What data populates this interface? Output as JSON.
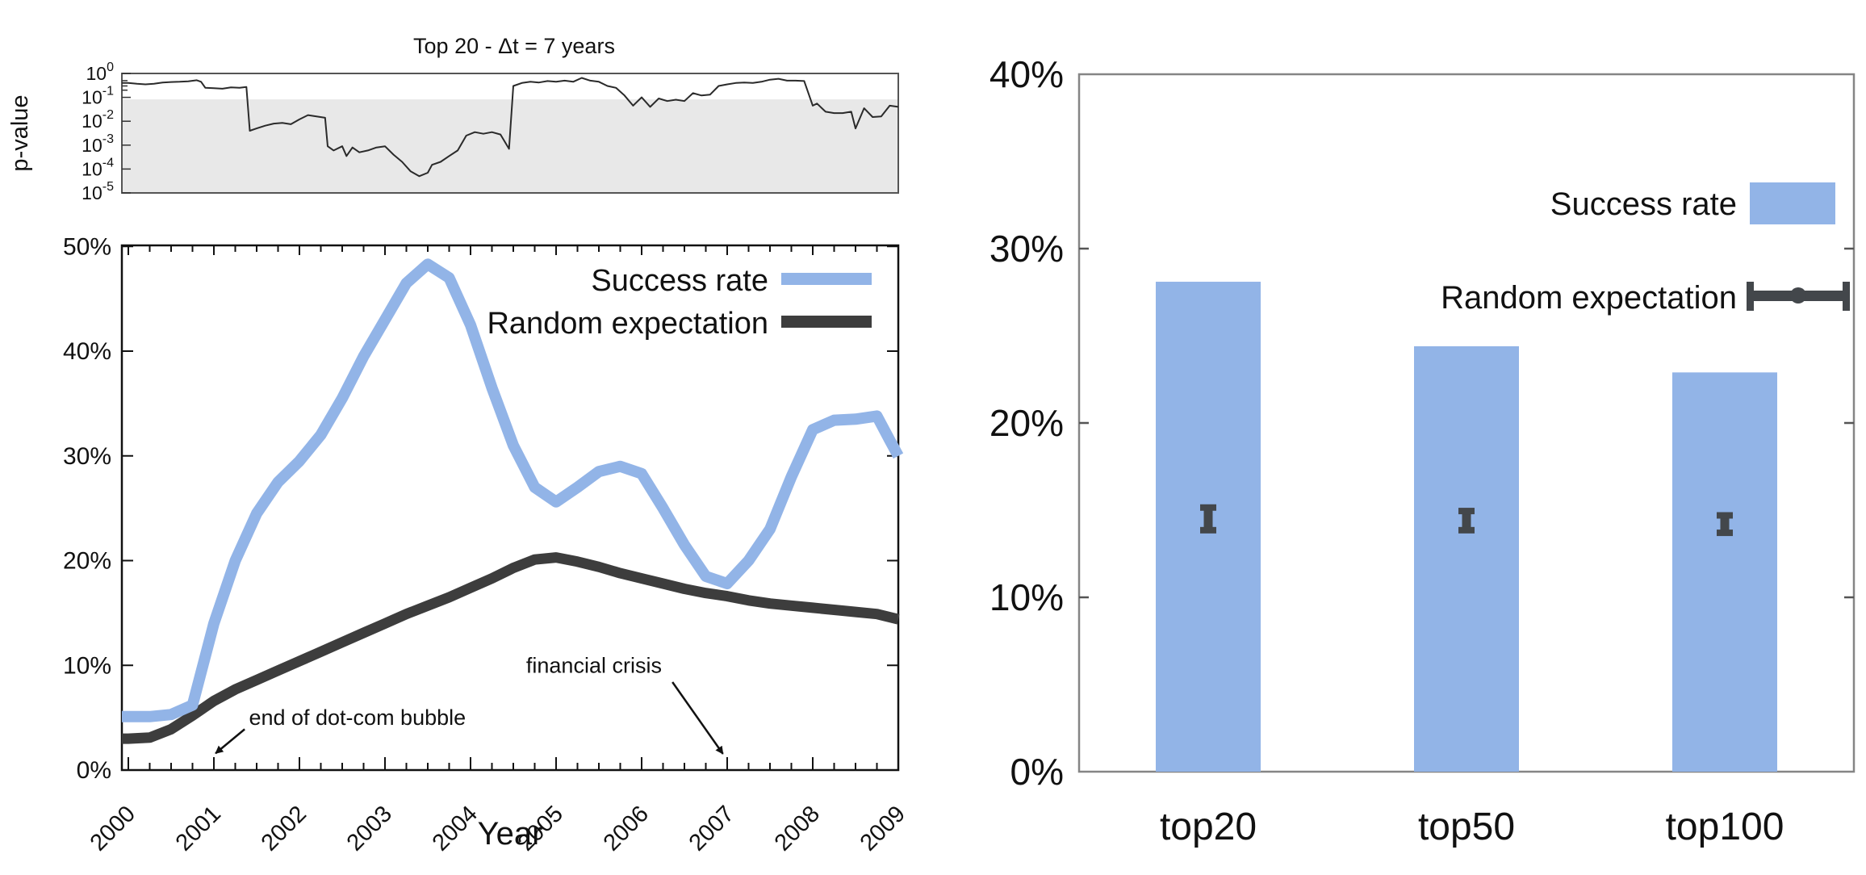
{
  "figure_title": "Top 20 - Δt = 7 years",
  "colors": {
    "success_blue": "#92b4e7",
    "random_dark": "#3d3d3d",
    "pvalue_line": "#2a2a2a",
    "shade_gray": "#e8e8e8",
    "error_bar": "#43474b",
    "bar_frame": "#858585",
    "main_frame": "#111111",
    "pv_frame": "#555555"
  },
  "chart_data": [
    {
      "id": "pvalue_panel",
      "type": "line",
      "title": "Top 20 - Δt = 7 years",
      "ylabel": "p-value",
      "yscale": "log",
      "ylim": [
        1e-05,
        1
      ],
      "ytick_exponents": [
        0,
        -1,
        -2,
        -3,
        -4,
        -5
      ],
      "xlim": [
        2000,
        2009
      ],
      "shaded_below": 0.1,
      "grid": false,
      "series": [
        {
          "name": "p-value",
          "points": [
            [
              2000.0,
              0.4
            ],
            [
              2000.1,
              0.37
            ],
            [
              2000.2,
              0.35
            ],
            [
              2000.3,
              0.37
            ],
            [
              2000.4,
              0.42
            ],
            [
              2000.5,
              0.44
            ],
            [
              2000.6,
              0.45
            ],
            [
              2000.7,
              0.47
            ],
            [
              2000.8,
              0.52
            ],
            [
              2000.85,
              0.45
            ],
            [
              2000.9,
              0.25
            ],
            [
              2001.0,
              0.24
            ],
            [
              2001.1,
              0.23
            ],
            [
              2001.2,
              0.26
            ],
            [
              2001.3,
              0.25
            ],
            [
              2001.38,
              0.27
            ],
            [
              2001.42,
              0.004
            ],
            [
              2001.5,
              0.005
            ],
            [
              2001.6,
              0.0065
            ],
            [
              2001.7,
              0.008
            ],
            [
              2001.8,
              0.0085
            ],
            [
              2001.9,
              0.0075
            ],
            [
              2002.0,
              0.012
            ],
            [
              2002.1,
              0.018
            ],
            [
              2002.2,
              0.016
            ],
            [
              2002.3,
              0.014
            ],
            [
              2002.33,
              0.0009
            ],
            [
              2002.4,
              0.0006
            ],
            [
              2002.5,
              0.0009
            ],
            [
              2002.55,
              0.00035
            ],
            [
              2002.62,
              0.0008
            ],
            [
              2002.7,
              0.0005
            ],
            [
              2002.8,
              0.0006
            ],
            [
              2002.9,
              0.0008
            ],
            [
              2003.0,
              0.0009
            ],
            [
              2003.1,
              0.0004
            ],
            [
              2003.2,
              0.0002
            ],
            [
              2003.3,
              8e-05
            ],
            [
              2003.4,
              5e-05
            ],
            [
              2003.5,
              7e-05
            ],
            [
              2003.55,
              0.00015
            ],
            [
              2003.65,
              0.0002
            ],
            [
              2003.75,
              0.00035
            ],
            [
              2003.85,
              0.0006
            ],
            [
              2003.95,
              0.0025
            ],
            [
              2004.05,
              0.0035
            ],
            [
              2004.15,
              0.003
            ],
            [
              2004.25,
              0.0035
            ],
            [
              2004.35,
              0.0028
            ],
            [
              2004.45,
              0.0007
            ],
            [
              2004.5,
              0.3
            ],
            [
              2004.6,
              0.4
            ],
            [
              2004.7,
              0.45
            ],
            [
              2004.8,
              0.42
            ],
            [
              2004.9,
              0.48
            ],
            [
              2005.0,
              0.45
            ],
            [
              2005.1,
              0.5
            ],
            [
              2005.2,
              0.45
            ],
            [
              2005.3,
              0.65
            ],
            [
              2005.4,
              0.5
            ],
            [
              2005.5,
              0.45
            ],
            [
              2005.6,
              0.3
            ],
            [
              2005.7,
              0.25
            ],
            [
              2005.8,
              0.12
            ],
            [
              2005.9,
              0.045
            ],
            [
              2006.0,
              0.1
            ],
            [
              2006.1,
              0.04
            ],
            [
              2006.2,
              0.09
            ],
            [
              2006.3,
              0.07
            ],
            [
              2006.4,
              0.08
            ],
            [
              2006.5,
              0.07
            ],
            [
              2006.6,
              0.15
            ],
            [
              2006.7,
              0.12
            ],
            [
              2006.8,
              0.13
            ],
            [
              2006.9,
              0.3
            ],
            [
              2007.0,
              0.35
            ],
            [
              2007.1,
              0.4
            ],
            [
              2007.2,
              0.42
            ],
            [
              2007.3,
              0.4
            ],
            [
              2007.4,
              0.45
            ],
            [
              2007.5,
              0.55
            ],
            [
              2007.6,
              0.6
            ],
            [
              2007.7,
              0.5
            ],
            [
              2007.8,
              0.5
            ],
            [
              2007.9,
              0.48
            ],
            [
              2008.0,
              0.045
            ],
            [
              2008.05,
              0.055
            ],
            [
              2008.15,
              0.025
            ],
            [
              2008.25,
              0.022
            ],
            [
              2008.35,
              0.022
            ],
            [
              2008.45,
              0.025
            ],
            [
              2008.5,
              0.005
            ],
            [
              2008.6,
              0.035
            ],
            [
              2008.7,
              0.015
            ],
            [
              2008.8,
              0.016
            ],
            [
              2008.9,
              0.045
            ],
            [
              2009.0,
              0.04
            ]
          ]
        }
      ]
    },
    {
      "id": "success_rate_panel",
      "type": "line",
      "xlabel": "Year",
      "ylim": [
        0,
        50
      ],
      "ytick_labels": [
        "0%",
        "10%",
        "20%",
        "30%",
        "40%",
        "50%"
      ],
      "ytick_values": [
        0,
        10,
        20,
        30,
        40,
        50
      ],
      "xtick_labels": [
        "2000",
        "2001",
        "2002",
        "2003",
        "2004",
        "2005",
        "2006",
        "2007",
        "2008",
        "2009"
      ],
      "xtick_values": [
        2000,
        2001,
        2002,
        2003,
        2004,
        2005,
        2006,
        2007,
        2008,
        2009
      ],
      "legend_position": "top right",
      "grid": false,
      "series": [
        {
          "name": "Success rate",
          "color": "#92b4e7",
          "points": [
            [
              2000,
              5.1
            ],
            [
              2000.25,
              5.1
            ],
            [
              2000.5,
              5.3
            ],
            [
              2000.75,
              6.2
            ],
            [
              2001,
              14
            ],
            [
              2001.25,
              20
            ],
            [
              2001.5,
              24.5
            ],
            [
              2001.75,
              27.5
            ],
            [
              2002,
              29.5
            ],
            [
              2002.25,
              32
            ],
            [
              2002.5,
              35.5
            ],
            [
              2002.75,
              39.5
            ],
            [
              2003,
              43
            ],
            [
              2003.25,
              46.5
            ],
            [
              2003.5,
              48.3
            ],
            [
              2003.75,
              47
            ],
            [
              2004,
              42.5
            ],
            [
              2004.25,
              36.5
            ],
            [
              2004.5,
              31
            ],
            [
              2004.75,
              27
            ],
            [
              2005,
              25.6
            ],
            [
              2005.25,
              27
            ],
            [
              2005.5,
              28.5
            ],
            [
              2005.75,
              29
            ],
            [
              2006,
              28.3
            ],
            [
              2006.25,
              25
            ],
            [
              2006.5,
              21.5
            ],
            [
              2006.75,
              18.5
            ],
            [
              2007,
              17.8
            ],
            [
              2007.25,
              20
            ],
            [
              2007.5,
              23
            ],
            [
              2007.75,
              28
            ],
            [
              2008,
              32.5
            ],
            [
              2008.25,
              33.4
            ],
            [
              2008.5,
              33.5
            ],
            [
              2008.75,
              33.8
            ],
            [
              2008.9,
              31.5
            ],
            [
              2009,
              30
            ]
          ]
        },
        {
          "name": "Random expectation",
          "color": "#3d3d3d",
          "points": [
            [
              2000,
              3.0
            ],
            [
              2000.25,
              3.1
            ],
            [
              2000.5,
              3.9
            ],
            [
              2000.75,
              5.2
            ],
            [
              2001,
              6.6
            ],
            [
              2001.25,
              7.7
            ],
            [
              2001.5,
              8.6
            ],
            [
              2001.75,
              9.5
            ],
            [
              2002,
              10.4
            ],
            [
              2002.25,
              11.3
            ],
            [
              2002.5,
              12.2
            ],
            [
              2002.75,
              13.1
            ],
            [
              2003,
              14.0
            ],
            [
              2003.25,
              14.9
            ],
            [
              2003.5,
              15.7
            ],
            [
              2003.75,
              16.5
            ],
            [
              2004,
              17.4
            ],
            [
              2004.25,
              18.3
            ],
            [
              2004.5,
              19.3
            ],
            [
              2004.75,
              20.1
            ],
            [
              2005,
              20.3
            ],
            [
              2005.25,
              19.9
            ],
            [
              2005.5,
              19.4
            ],
            [
              2005.75,
              18.8
            ],
            [
              2006,
              18.3
            ],
            [
              2006.25,
              17.8
            ],
            [
              2006.5,
              17.3
            ],
            [
              2006.75,
              16.9
            ],
            [
              2007,
              16.6
            ],
            [
              2007.25,
              16.2
            ],
            [
              2007.5,
              15.9
            ],
            [
              2007.75,
              15.7
            ],
            [
              2008,
              15.5
            ],
            [
              2008.25,
              15.3
            ],
            [
              2008.5,
              15.1
            ],
            [
              2008.75,
              14.9
            ],
            [
              2009,
              14.4
            ]
          ]
        }
      ],
      "annotations": [
        {
          "text": "end of dot-com bubble",
          "text_at": [
            2001.41,
            4.3
          ],
          "arrow_from": [
            2001.36,
            3.9
          ],
          "arrow_to": [
            2001.02,
            1.6
          ]
        },
        {
          "text": "financial crisis",
          "text_at": [
            2004.65,
            9.3
          ],
          "arrow_from": [
            2006.36,
            8.4
          ],
          "arrow_to": [
            2006.95,
            1.55
          ]
        }
      ]
    },
    {
      "id": "summary_bar_panel",
      "type": "bar",
      "categories": [
        "top20",
        "top50",
        "top100"
      ],
      "values": [
        28.1,
        24.4,
        22.9
      ],
      "bar_color": "#92b4e7",
      "ylim": [
        0,
        40
      ],
      "ytick_labels": [
        "0%",
        "10%",
        "20%",
        "30%",
        "40%"
      ],
      "ytick_values": [
        0,
        10,
        20,
        30,
        40
      ],
      "legend": [
        "Success rate",
        "Random expectation"
      ],
      "error_series": {
        "name": "Random expectation",
        "color": "#43474b",
        "centers": [
          14.5,
          14.4,
          14.2
        ],
        "half_ranges": [
          0.65,
          0.55,
          0.5
        ]
      },
      "grid": false
    }
  ]
}
